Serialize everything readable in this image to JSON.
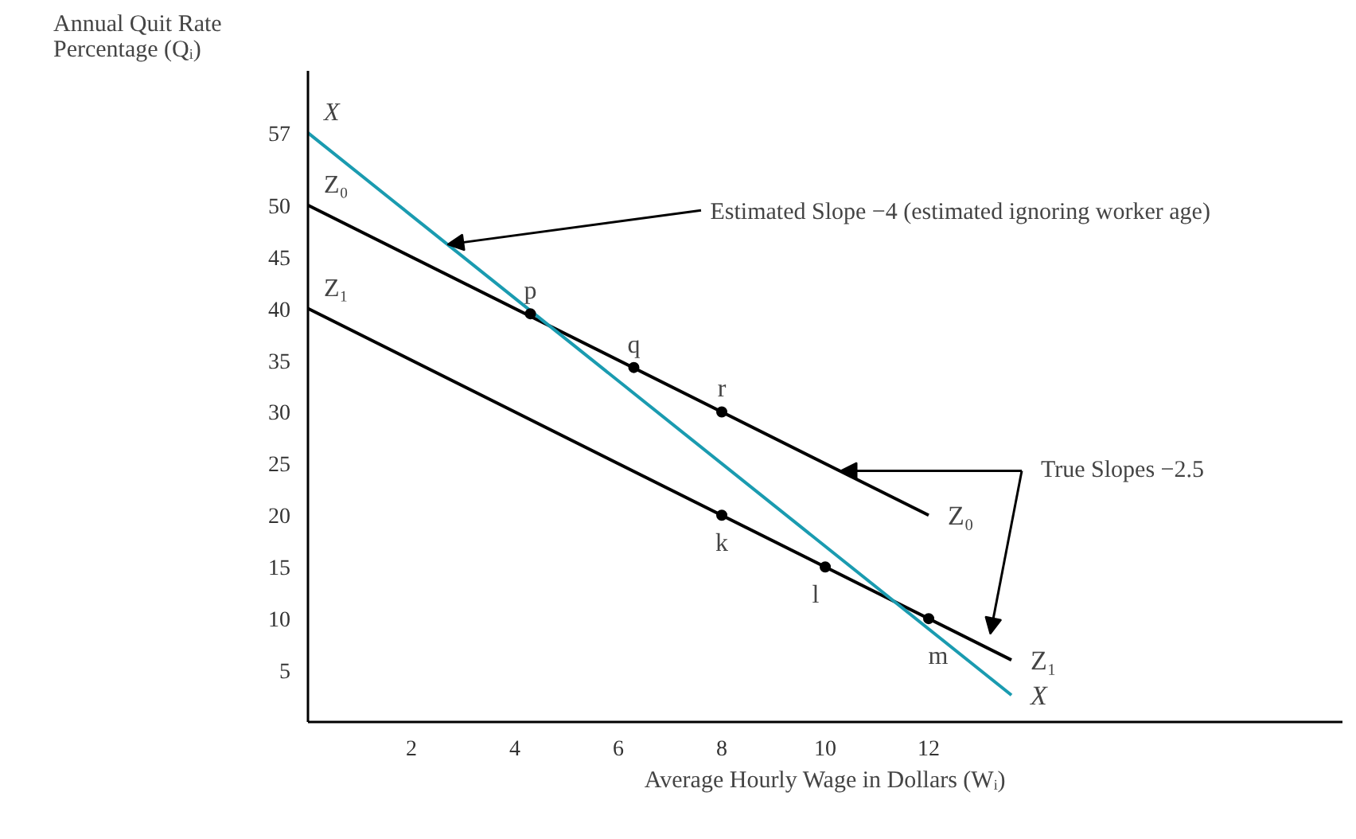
{
  "chart_data": {
    "type": "line",
    "xlabel": "Average Hourly Wage in Dollars (Wᵢ)",
    "ylabel": "Annual Quit Rate\nPercentage (Qᵢ)",
    "xlim": [
      0,
      20
    ],
    "ylim": [
      0,
      63
    ],
    "xticks": [
      2,
      4,
      6,
      8,
      10,
      12
    ],
    "yticks": [
      5,
      10,
      15,
      20,
      25,
      30,
      35,
      40,
      45,
      50,
      57
    ],
    "grid": false,
    "marker": "none",
    "line_style": "solid",
    "series": [
      {
        "name": "Z₀",
        "color": "#000000",
        "x": [
          0,
          12
        ],
        "values": [
          50,
          20
        ]
      },
      {
        "name": "Z₁",
        "color": "#000000",
        "x": [
          0,
          13.6
        ],
        "values": [
          40,
          6
        ]
      },
      {
        "name": "X",
        "color": "#1a9bb0",
        "x": [
          0,
          13.6
        ],
        "values": [
          57,
          2.6
        ]
      },
      {
        "type": "scatter",
        "color": "#000000",
        "marker": "circle",
        "x": [
          4.3,
          6.3,
          8,
          8,
          10,
          12
        ],
        "values": [
          39.5,
          34.3,
          30,
          20,
          15,
          10
        ]
      }
    ],
    "annotations": [
      {
        "text": "Estimated Slope −4 (estimated ignoring worker age)",
        "x": 2.7,
        "y": 46.2
      },
      {
        "text": "True Slopes −2.5",
        "x": 10.3,
        "y": 24.3
      },
      {
        "text": "X",
        "x": 0,
        "y": 57
      },
      {
        "text": "Z₀",
        "x": 0,
        "y": 50
      },
      {
        "text": "Z₁",
        "x": 0,
        "y": 40
      },
      {
        "text": "p",
        "x": 4.3,
        "y": 39.5
      },
      {
        "text": "q",
        "x": 6.3,
        "y": 34.3
      },
      {
        "text": "r",
        "x": 8,
        "y": 30
      },
      {
        "text": "k",
        "x": 8,
        "y": 20
      },
      {
        "text": "l",
        "x": 10,
        "y": 15
      },
      {
        "text": "m",
        "x": 12,
        "y": 10
      }
    ]
  }
}
